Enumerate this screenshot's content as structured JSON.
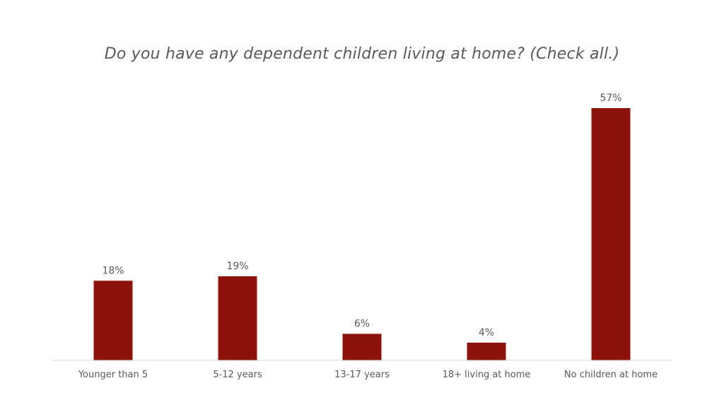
{
  "chart_data": {
    "type": "bar",
    "title": "Do you have any dependent children living at home? (Check all.)",
    "categories": [
      "Younger than 5",
      "5-12 years",
      "13-17 years",
      "18+ living at home",
      "No children at home"
    ],
    "values": [
      18,
      19,
      6,
      4,
      57
    ],
    "data_labels": [
      "18%",
      "19%",
      "6%",
      "4%",
      "57%"
    ],
    "xlabel": "",
    "ylabel": "",
    "ylim": [
      0,
      60
    ],
    "unit": "%",
    "grid": false,
    "legend": "none",
    "colors": {
      "bar": "#8B130C",
      "axis": "#D9D9D9",
      "text": "#595959"
    }
  }
}
